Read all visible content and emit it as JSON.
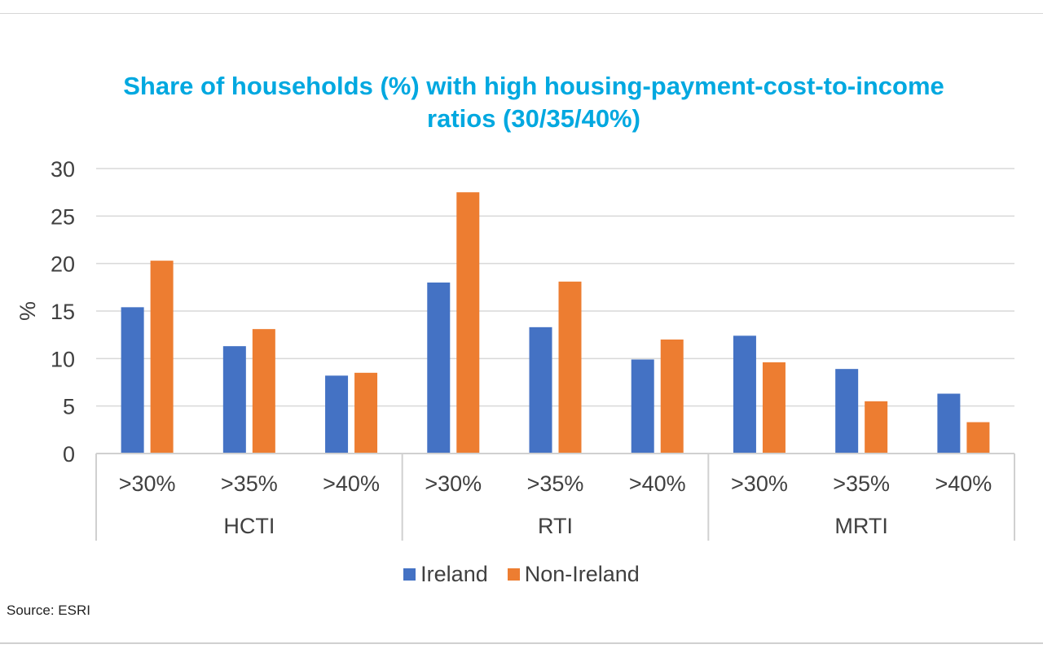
{
  "chart_data": {
    "type": "bar",
    "title_lines": [
      "Share of households (%) with high housing-payment-cost-to-income",
      "ratios (30/35/40%)"
    ],
    "ylabel": "%",
    "ylim": [
      0,
      30
    ],
    "yticks": [
      0,
      5,
      10,
      15,
      20,
      25,
      30
    ],
    "grid": true,
    "legend_position": "bottom",
    "groups": [
      {
        "label": "HCTI",
        "categories": [
          ">30%",
          ">35%",
          ">40%"
        ]
      },
      {
        "label": "RTI",
        "categories": [
          ">30%",
          ">35%",
          ">40%"
        ]
      },
      {
        "label": "MRTI",
        "categories": [
          ">30%",
          ">35%",
          ">40%"
        ]
      }
    ],
    "series": [
      {
        "name": "Ireland",
        "color": "#4472c4",
        "values": [
          15.4,
          11.3,
          8.2,
          18.0,
          13.3,
          9.9,
          12.4,
          8.9,
          6.3
        ]
      },
      {
        "name": "Non-Ireland",
        "color": "#ed7d31",
        "values": [
          20.3,
          13.1,
          8.5,
          27.5,
          18.1,
          12.0,
          9.6,
          5.5,
          3.3
        ]
      }
    ]
  },
  "source": "Source: ESRI"
}
